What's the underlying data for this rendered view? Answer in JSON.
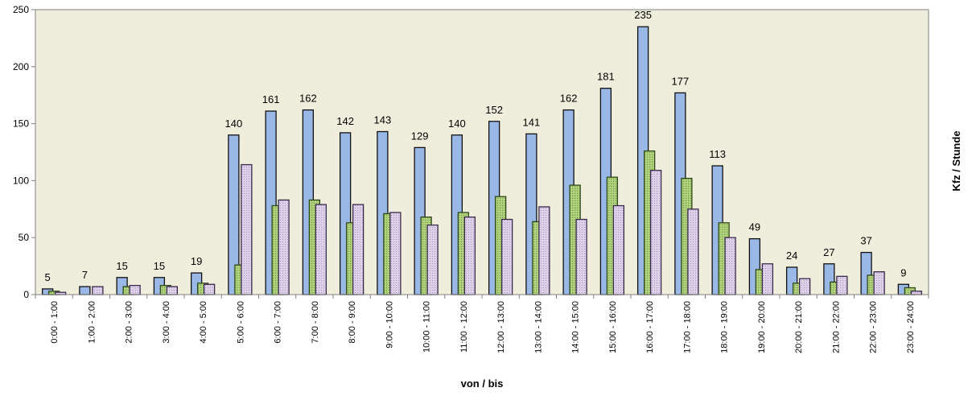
{
  "chart_data": {
    "type": "bar",
    "xlabel": "von / bis",
    "ylabel": "Kfz / Stunde",
    "ylim": [
      0,
      250
    ],
    "yticks": [
      0,
      50,
      100,
      150,
      200,
      250
    ],
    "grid": false,
    "legend": "none",
    "categories": [
      "0:00 - 1:00",
      "1:00 - 2:00",
      "2:00 - 3:00",
      "3:00 - 4:00",
      "4:00 - 5:00",
      "5:00 - 6:00",
      "6:00 - 7:00",
      "7:00 - 8:00",
      "8:00 - 9:00",
      "9:00 - 10:00",
      "10:00 - 11:00",
      "11:00 - 12:00",
      "12:00 - 13:00",
      "13:00 - 14:00",
      "14:00 - 15:00",
      "15:00 - 16:00",
      "16:00 - 17:00",
      "17:00 - 18:00",
      "18:00 - 19:00",
      "19:00 - 20:00",
      "20:00 - 21:00",
      "21:00 - 22:00",
      "22:00 - 23:00",
      "23:00 - 24:00"
    ],
    "series": [
      {
        "color": "#99b8e6",
        "pattern": "solid",
        "labeled": true,
        "values": [
          5,
          7,
          15,
          15,
          19,
          140,
          161,
          162,
          142,
          143,
          129,
          140,
          152,
          141,
          162,
          181,
          235,
          177,
          113,
          49,
          24,
          27,
          37,
          9
        ]
      },
      {
        "color": "#9fc56a",
        "pattern": "crosshatch",
        "values": [
          3,
          0,
          7,
          8,
          10,
          26,
          78,
          83,
          63,
          71,
          68,
          72,
          86,
          64,
          96,
          103,
          126,
          102,
          63,
          22,
          10,
          11,
          17,
          6
        ]
      },
      {
        "color": "#d6c6e2",
        "pattern": "dotted",
        "values": [
          2,
          7,
          8,
          7,
          9,
          114,
          83,
          79,
          79,
          72,
          61,
          68,
          66,
          77,
          66,
          78,
          109,
          75,
          50,
          27,
          14,
          16,
          20,
          3
        ]
      }
    ]
  }
}
